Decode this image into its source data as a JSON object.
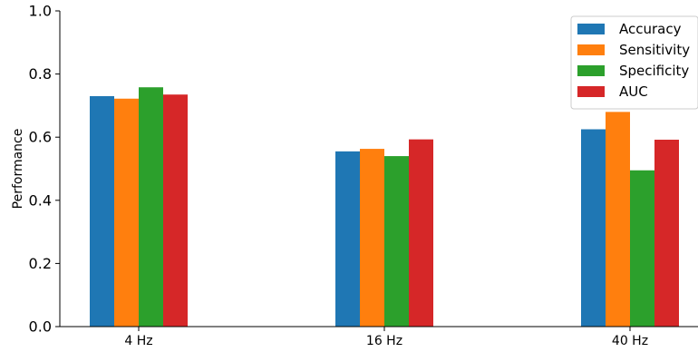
{
  "chart_data": {
    "type": "bar",
    "categories": [
      "4 Hz",
      "16 Hz",
      "40 Hz"
    ],
    "series": [
      {
        "name": "Accuracy",
        "color": "#1f77b4",
        "values": [
          0.73,
          0.555,
          0.625
        ]
      },
      {
        "name": "Sensitivity",
        "color": "#ff7f0e",
        "values": [
          0.722,
          0.563,
          0.68
        ]
      },
      {
        "name": "Specificity",
        "color": "#2ca02c",
        "values": [
          0.758,
          0.54,
          0.495
        ]
      },
      {
        "name": "AUC",
        "color": "#d62728",
        "values": [
          0.735,
          0.593,
          0.592
        ]
      }
    ],
    "xlabel": "",
    "ylabel": "Performance",
    "ylim": [
      0.0,
      1.0
    ],
    "yticks": [
      "0.0",
      "0.2",
      "0.4",
      "0.6",
      "0.8",
      "1.0"
    ],
    "grid": false,
    "legend_position": "top-right"
  }
}
